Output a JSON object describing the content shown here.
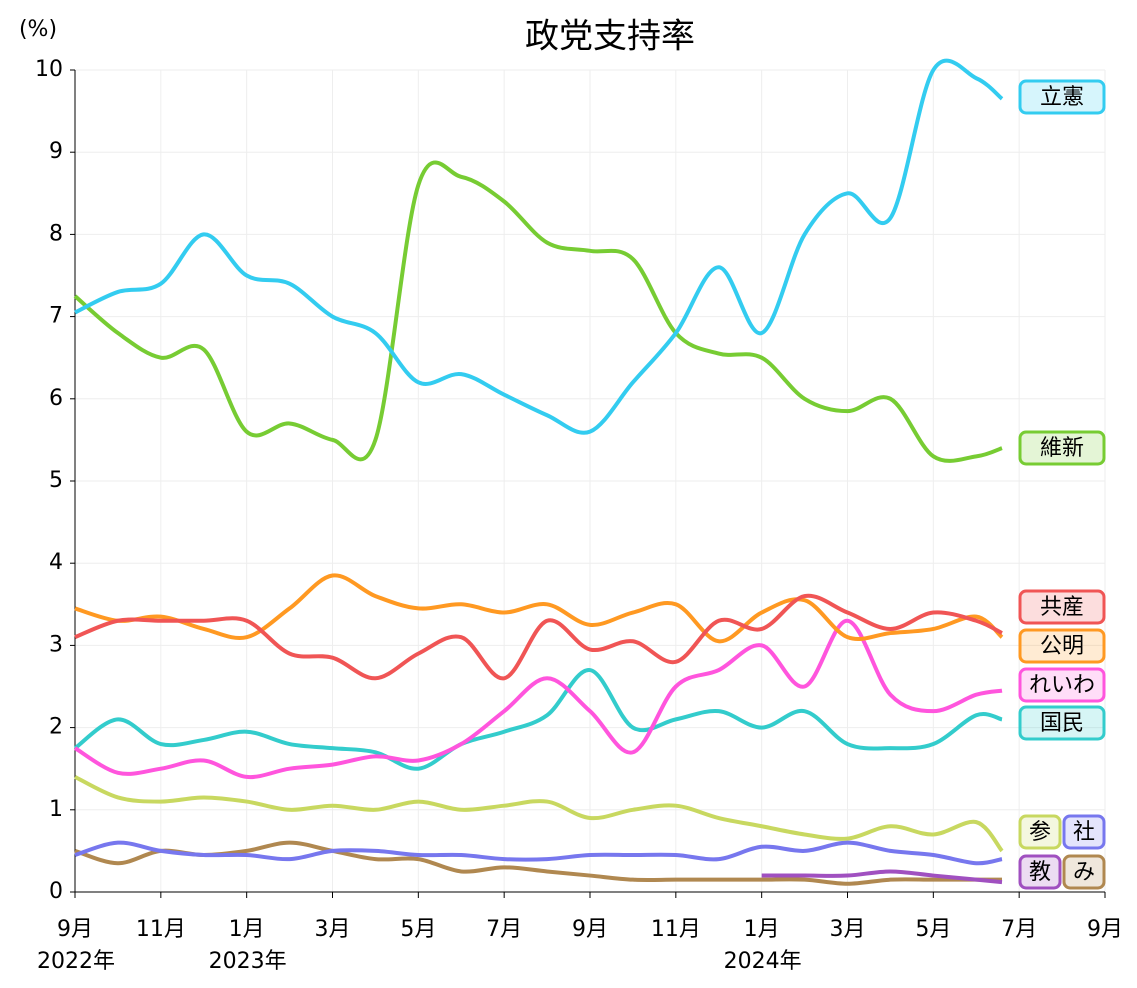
{
  "chart_data": {
    "type": "line",
    "title": "政党支持率",
    "ylabel": "(%)",
    "x": [
      0,
      1,
      2,
      3,
      4,
      5,
      6,
      7,
      8,
      9,
      10,
      11,
      12,
      13,
      14,
      15,
      16,
      17,
      18,
      19,
      20,
      21,
      21.6
    ],
    "xlim": [
      0,
      24
    ],
    "xticks": [
      {
        "value": 0,
        "label": "9月"
      },
      {
        "value": 2,
        "label": "11月"
      },
      {
        "value": 4,
        "label": "1月"
      },
      {
        "value": 6,
        "label": "3月"
      },
      {
        "value": 8,
        "label": "5月"
      },
      {
        "value": 10,
        "label": "7月"
      },
      {
        "value": 12,
        "label": "9月"
      },
      {
        "value": 14,
        "label": "11月"
      },
      {
        "value": 16,
        "label": "1月"
      },
      {
        "value": 18,
        "label": "3月"
      },
      {
        "value": 20,
        "label": "5月"
      },
      {
        "value": 22,
        "label": "7月"
      },
      {
        "value": 24,
        "label": "9月"
      }
    ],
    "x_year_labels": [
      {
        "value": 0,
        "label": "2022年"
      },
      {
        "value": 4,
        "label": "2023年"
      },
      {
        "value": 16,
        "label": "2024年"
      }
    ],
    "ylim": [
      0,
      10
    ],
    "yticks": [
      0,
      1,
      2,
      3,
      4,
      5,
      6,
      7,
      8,
      9,
      10
    ],
    "grid": true,
    "series": [
      {
        "name": "立憲",
        "color": "#33ccf0",
        "values": [
          7.05,
          7.3,
          7.4,
          8.0,
          7.5,
          7.4,
          7.0,
          6.8,
          6.2,
          6.3,
          6.05,
          5.8,
          5.6,
          6.2,
          6.8,
          7.6,
          6.8,
          8.0,
          8.5,
          8.2,
          10.0,
          9.9,
          9.65
        ]
      },
      {
        "name": "維新",
        "color": "#77cc33",
        "values": [
          7.25,
          6.8,
          6.5,
          6.6,
          5.6,
          5.7,
          5.5,
          5.5,
          8.6,
          8.7,
          8.4,
          7.9,
          7.8,
          7.7,
          6.8,
          6.55,
          6.5,
          6.0,
          5.85,
          6.0,
          5.3,
          5.3,
          5.4
        ]
      },
      {
        "name": "共産",
        "color": "#f05555",
        "values": [
          3.1,
          3.3,
          3.3,
          3.3,
          3.3,
          2.9,
          2.85,
          2.6,
          2.9,
          3.1,
          2.6,
          3.3,
          2.95,
          3.05,
          2.8,
          3.3,
          3.2,
          3.6,
          3.4,
          3.2,
          3.4,
          3.3,
          3.15
        ]
      },
      {
        "name": "公明",
        "color": "#ff9922",
        "values": [
          3.45,
          3.3,
          3.35,
          3.2,
          3.1,
          3.45,
          3.85,
          3.6,
          3.45,
          3.5,
          3.4,
          3.5,
          3.25,
          3.4,
          3.5,
          3.05,
          3.4,
          3.55,
          3.1,
          3.15,
          3.2,
          3.35,
          3.1
        ]
      },
      {
        "name": "れいわ",
        "color": "#ff55dd",
        "values": [
          1.75,
          1.45,
          1.5,
          1.6,
          1.4,
          1.5,
          1.55,
          1.65,
          1.6,
          1.8,
          2.2,
          2.6,
          2.2,
          1.7,
          2.5,
          2.7,
          3.0,
          2.5,
          3.3,
          2.4,
          2.2,
          2.4,
          2.45
        ]
      },
      {
        "name": "国民",
        "color": "#33cccc",
        "values": [
          1.75,
          2.1,
          1.8,
          1.85,
          1.95,
          1.8,
          1.75,
          1.7,
          1.5,
          1.8,
          1.95,
          2.15,
          2.7,
          2.0,
          2.1,
          2.2,
          2.0,
          2.2,
          1.8,
          1.75,
          1.8,
          2.15,
          2.1
        ]
      },
      {
        "name": "参",
        "color": "#c8d860",
        "values": [
          1.4,
          1.15,
          1.1,
          1.15,
          1.1,
          1.0,
          1.05,
          1.0,
          1.1,
          1.0,
          1.05,
          1.1,
          0.9,
          1.0,
          1.05,
          0.9,
          0.8,
          0.7,
          0.65,
          0.8,
          0.7,
          0.85,
          0.5
        ]
      },
      {
        "name": "社",
        "color": "#7777ee",
        "values": [
          0.45,
          0.6,
          0.5,
          0.45,
          0.45,
          0.4,
          0.5,
          0.5,
          0.45,
          0.45,
          0.4,
          0.4,
          0.45,
          0.45,
          0.45,
          0.4,
          0.55,
          0.5,
          0.6,
          0.5,
          0.45,
          0.35,
          0.4
        ]
      },
      {
        "name": "教",
        "color": "#a050c0",
        "values": [
          null,
          null,
          null,
          null,
          null,
          null,
          null,
          null,
          null,
          null,
          null,
          null,
          null,
          null,
          null,
          null,
          0.2,
          0.2,
          0.2,
          0.25,
          0.2,
          0.15,
          0.12
        ]
      },
      {
        "name": "み",
        "color": "#b08850",
        "values": [
          0.5,
          0.35,
          0.5,
          0.45,
          0.5,
          0.6,
          0.5,
          0.4,
          0.4,
          0.25,
          0.3,
          0.25,
          0.2,
          0.15,
          0.15,
          0.15,
          0.15,
          0.15,
          0.1,
          0.15,
          0.15,
          0.15,
          0.15
        ]
      }
    ]
  }
}
